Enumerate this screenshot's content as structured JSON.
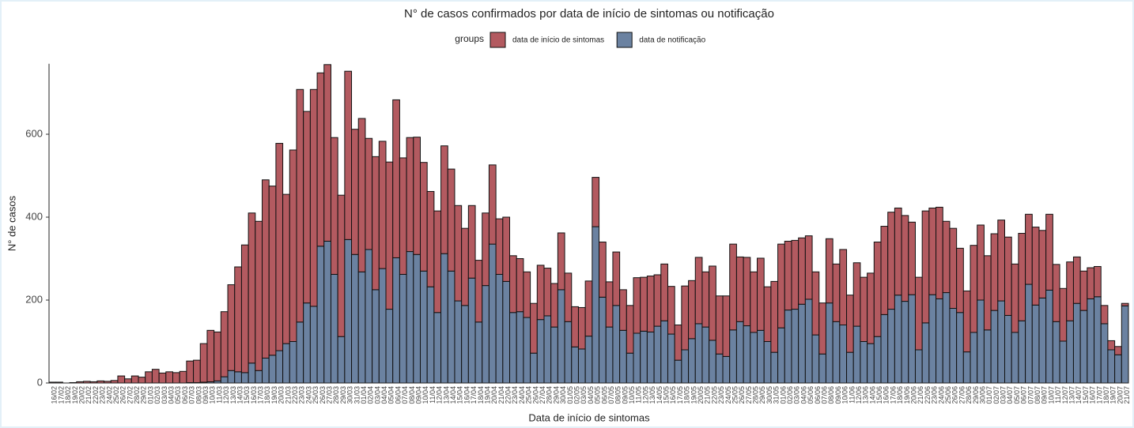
{
  "chart_data": {
    "type": "bar",
    "stacked": true,
    "title": "N° de casos confirmados por data de início de sintomas ou notificação",
    "legend_title": "groups",
    "x_label": "Data de início de sintomas",
    "y_label": "N° de casos",
    "ylim": [
      0,
      770
    ],
    "yticks": [
      0,
      200,
      400,
      600
    ],
    "categories": [
      "16/02",
      "17/02",
      "18/02",
      "19/02",
      "20/02",
      "21/02",
      "22/02",
      "23/02",
      "24/02",
      "25/02",
      "26/02",
      "27/02",
      "28/02",
      "29/02",
      "01/03",
      "02/03",
      "03/03",
      "04/03",
      "05/03",
      "06/03",
      "07/03",
      "08/03",
      "09/03",
      "10/03",
      "11/03",
      "12/03",
      "13/03",
      "14/03",
      "15/03",
      "16/03",
      "17/03",
      "18/03",
      "19/03",
      "20/03",
      "21/03",
      "22/03",
      "23/03",
      "24/03",
      "25/03",
      "26/03",
      "27/03",
      "28/03",
      "29/03",
      "30/03",
      "31/03",
      "01/04",
      "02/04",
      "03/04",
      "04/04",
      "05/04",
      "06/04",
      "07/04",
      "08/04",
      "09/04",
      "10/04",
      "11/04",
      "12/04",
      "13/04",
      "14/04",
      "15/04",
      "16/04",
      "17/04",
      "18/04",
      "19/04",
      "20/04",
      "21/04",
      "22/04",
      "23/04",
      "24/04",
      "25/04",
      "26/04",
      "27/04",
      "28/04",
      "29/04",
      "30/04",
      "01/05",
      "02/05",
      "03/05",
      "04/05",
      "05/05",
      "06/05",
      "07/05",
      "08/05",
      "09/05",
      "10/05",
      "11/05",
      "12/05",
      "13/05",
      "14/05",
      "15/05",
      "16/05",
      "17/05",
      "18/05",
      "19/05",
      "20/05",
      "21/05",
      "22/05",
      "23/05",
      "24/05",
      "25/05",
      "26/05",
      "27/05",
      "28/05",
      "29/05",
      "30/05",
      "31/05",
      "01/06",
      "02/06",
      "03/06",
      "04/06",
      "05/06",
      "06/06",
      "07/06",
      "08/06",
      "09/06",
      "10/06",
      "11/06",
      "12/06",
      "13/06",
      "14/06",
      "15/06",
      "16/06",
      "17/06",
      "18/06",
      "19/06",
      "20/06",
      "21/06",
      "22/06",
      "23/06",
      "24/06",
      "25/06",
      "26/06",
      "27/06",
      "28/06",
      "29/06",
      "30/06",
      "01/07",
      "02/07",
      "03/07",
      "04/07",
      "05/07",
      "06/07",
      "07/07",
      "08/07",
      "09/07",
      "10/07",
      "11/07",
      "12/07",
      "13/07",
      "14/07",
      "15/07",
      "16/07",
      "17/07",
      "18/07",
      "19/07",
      "20/07",
      "21/07"
    ],
    "series": [
      {
        "name": "data de início de sintomas",
        "color": "#b35a60",
        "values": [
          2,
          2,
          0,
          1,
          3,
          4,
          3,
          5,
          4,
          6,
          17,
          10,
          17,
          14,
          27,
          33,
          24,
          27,
          25,
          28,
          52,
          54,
          93,
          124,
          118,
          157,
          207,
          253,
          308,
          362,
          360,
          430,
          408,
          500,
          360,
          462,
          561,
          462,
          523,
          418,
          426,
          330,
          341,
          406,
          302,
          370,
          268,
          321,
          307,
          355,
          381,
          281,
          275,
          283,
          262,
          230,
          245,
          260,
          246,
          230,
          186,
          175,
          149,
          175,
          191,
          134,
          155,
          137,
          128,
          110,
          120,
          131,
          115,
          105,
          137,
          117,
          97,
          100,
          133,
          119,
          133,
          109,
          129,
          98,
          115,
          134,
          130,
          135,
          124,
          137,
          115,
          85,
          154,
          140,
          160,
          133,
          179,
          140,
          146,
          207,
          156,
          165,
          146,
          174,
          132,
          171,
          202,
          166,
          166,
          160,
          153,
          152,
          123,
          155,
          139,
          182,
          138,
          153,
          155,
          170,
          228,
          213,
          234,
          210,
          207,
          175,
          175,
          270,
          209,
          221,
          172,
          193,
          155,
          147,
          210,
          181,
          179,
          185,
          195,
          189,
          165,
          211,
          169,
          188,
          163,
          183,
          138,
          127,
          142,
          112,
          95,
          75,
          73,
          44,
          22,
          20,
          6
        ]
      },
      {
        "name": "data de notificação",
        "color": "#6b82a1",
        "values": [
          0,
          0,
          0,
          0,
          0,
          0,
          0,
          0,
          0,
          0,
          0,
          0,
          0,
          0,
          0,
          0,
          0,
          0,
          0,
          0,
          1,
          1,
          2,
          3,
          5,
          15,
          30,
          27,
          25,
          48,
          30,
          60,
          67,
          78,
          95,
          100,
          147,
          193,
          185,
          330,
          342,
          262,
          112,
          346,
          310,
          268,
          322,
          225,
          276,
          178,
          302,
          262,
          317,
          310,
          270,
          232,
          170,
          312,
          270,
          198,
          187,
          253,
          147,
          235,
          335,
          262,
          245,
          170,
          172,
          158,
          72,
          153,
          162,
          135,
          225,
          148,
          87,
          82,
          113,
          377,
          207,
          135,
          187,
          127,
          72,
          120,
          125,
          123,
          137,
          150,
          118,
          55,
          80,
          107,
          143,
          135,
          103,
          70,
          64,
          128,
          148,
          138,
          122,
          127,
          100,
          74,
          133,
          176,
          178,
          190,
          202,
          116,
          70,
          193,
          148,
          140,
          74,
          137,
          100,
          95,
          112,
          165,
          178,
          212,
          197,
          213,
          80,
          145,
          213,
          203,
          218,
          180,
          170,
          75,
          122,
          200,
          128,
          175,
          198,
          163,
          122,
          150,
          238,
          188,
          205,
          224,
          148,
          101,
          150,
          192,
          175,
          203,
          208,
          143,
          80,
          68,
          186
        ]
      }
    ]
  }
}
